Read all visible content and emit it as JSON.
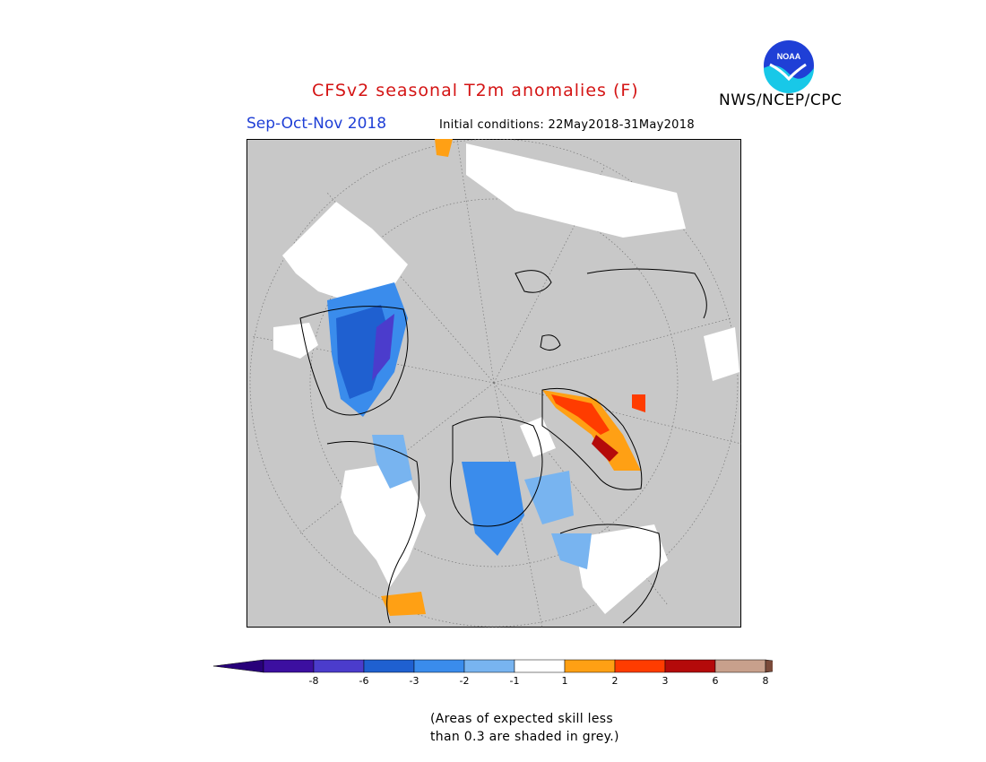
{
  "header": {
    "title": "CFSv2 seasonal T2m anomalies (F)",
    "organization": "NWS/NCEP/CPC",
    "season": "Sep-Oct-Nov 2018",
    "initial_conditions": "Initial conditions: 22May2018-31May2018",
    "logo_text": "NOAA"
  },
  "map": {
    "projection": "north polar stereographic",
    "background_color": "#c8c8c8",
    "no_signal_color": "#ffffff"
  },
  "legend": {
    "bins": [
      {
        "label": "-8",
        "color": "#3c0fa0"
      },
      {
        "label": "-6",
        "color": "#4b3ccc"
      },
      {
        "label": "-3",
        "color": "#1f60d0"
      },
      {
        "label": "-2",
        "color": "#3a8cec"
      },
      {
        "label": "-1",
        "color": "#78b4f0"
      },
      {
        "label": "1",
        "color": "#ffffff"
      },
      {
        "label": "2",
        "color": "#ffa014"
      },
      {
        "label": "3",
        "color": "#ff3c00"
      },
      {
        "label": "6",
        "color": "#b40a0a"
      },
      {
        "label": "8",
        "color": "#c8a08c"
      }
    ],
    "extra_color": "#7a4a3a",
    "low_end_color": "#28007a"
  },
  "footnote": {
    "line1": "(Areas of expected skill less",
    "line2": "than 0.3 are shaded in grey.)"
  }
}
